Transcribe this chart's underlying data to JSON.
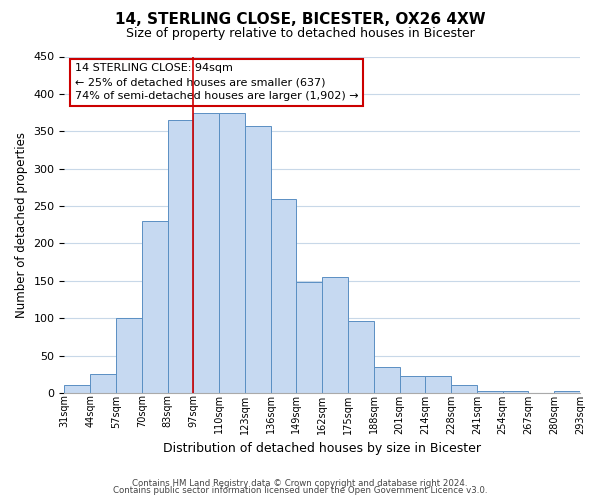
{
  "title": "14, STERLING CLOSE, BICESTER, OX26 4XW",
  "subtitle": "Size of property relative to detached houses in Bicester",
  "xlabel": "Distribution of detached houses by size in Bicester",
  "ylabel": "Number of detached properties",
  "bin_labels": [
    "31sqm",
    "44sqm",
    "57sqm",
    "70sqm",
    "83sqm",
    "97sqm",
    "110sqm",
    "123sqm",
    "136sqm",
    "149sqm",
    "162sqm",
    "175sqm",
    "188sqm",
    "201sqm",
    "214sqm",
    "228sqm",
    "241sqm",
    "254sqm",
    "267sqm",
    "280sqm",
    "293sqm"
  ],
  "bar_values": [
    10,
    25,
    100,
    230,
    365,
    375,
    375,
    357,
    260,
    148,
    155,
    96,
    35,
    22,
    22,
    11,
    3,
    3,
    0,
    3
  ],
  "bar_color": "#c6d9f1",
  "bar_edge_color": "#5a8fc3",
  "vline_x_index": 5,
  "vline_color": "#cc0000",
  "annotation_title": "14 STERLING CLOSE: 94sqm",
  "annotation_line1": "← 25% of detached houses are smaller (637)",
  "annotation_line2": "74% of semi-detached houses are larger (1,902) →",
  "annotation_box_edge": "#cc0000",
  "ylim": [
    0,
    450
  ],
  "yticks": [
    0,
    50,
    100,
    150,
    200,
    250,
    300,
    350,
    400,
    450
  ],
  "footer_line1": "Contains HM Land Registry data © Crown copyright and database right 2024.",
  "footer_line2": "Contains public sector information licensed under the Open Government Licence v3.0.",
  "bg_color": "#ffffff",
  "grid_color": "#c8d8e8"
}
